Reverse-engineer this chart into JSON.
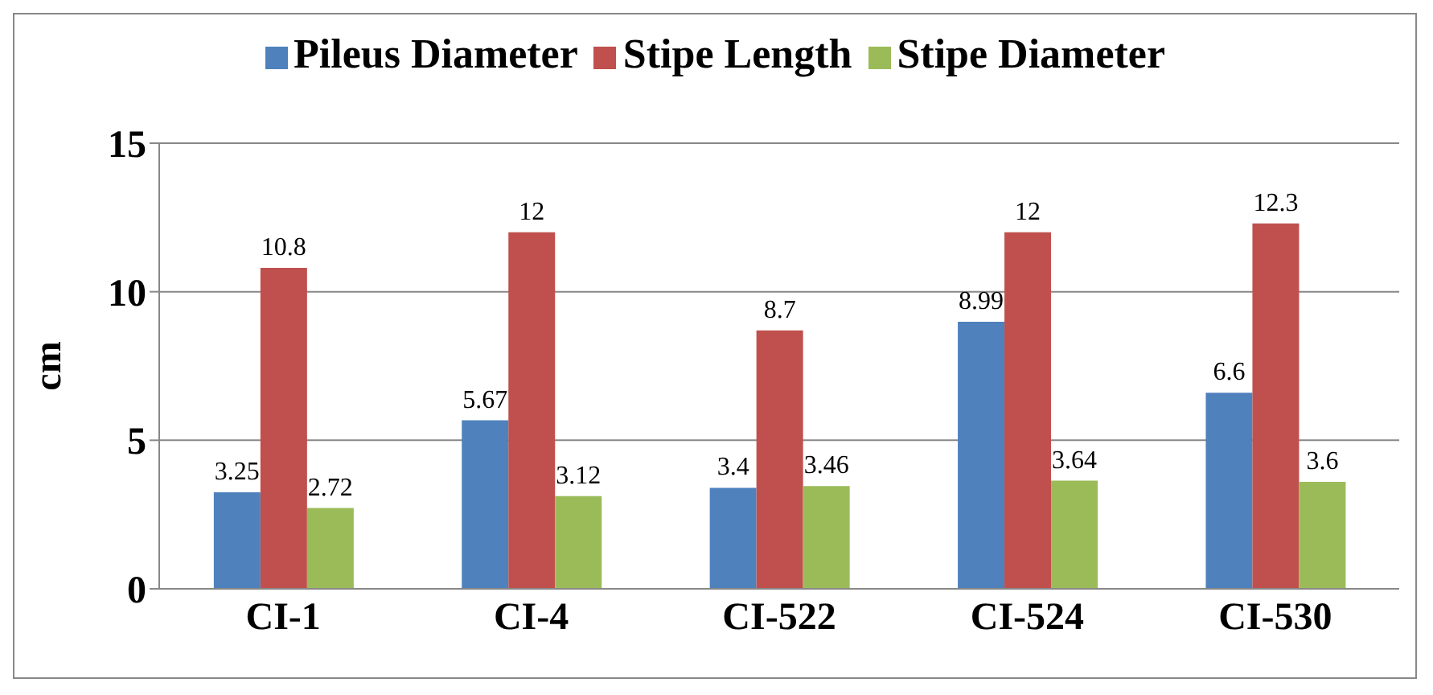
{
  "chart_data": {
    "type": "bar",
    "ylabel": "cm",
    "categories": [
      "CI-1",
      "CI-4",
      "CI-522",
      "CI-524",
      "CI-530"
    ],
    "series": [
      {
        "name": "Pileus Diameter",
        "color": "#4f81bd",
        "values": [
          3.25,
          5.67,
          3.4,
          8.99,
          6.6
        ]
      },
      {
        "name": "Stipe Length",
        "color": "#c0504d",
        "values": [
          10.8,
          12,
          8.7,
          12,
          12.3
        ]
      },
      {
        "name": "Stipe Diameter",
        "color": "#9bbb59",
        "values": [
          2.72,
          3.12,
          3.46,
          3.64,
          3.6
        ]
      }
    ],
    "ylim": [
      0,
      15
    ],
    "yticks": [
      0,
      5,
      10,
      15
    ],
    "grid": "y",
    "legend": "top",
    "data_labels": true
  }
}
